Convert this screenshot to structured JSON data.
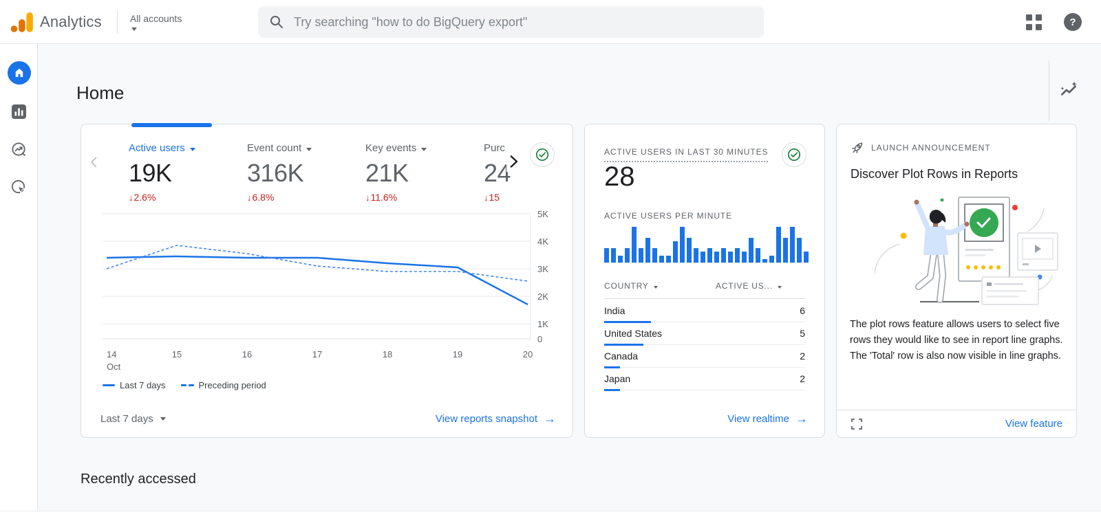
{
  "topbar": {
    "brand": "Analytics",
    "account_selector": "All accounts",
    "search_placeholder": "Try searching \"how to do BigQuery export\""
  },
  "page": {
    "title": "Home",
    "section_heading": "Recently accessed"
  },
  "overview_card": {
    "metrics": [
      {
        "label": "Active users",
        "value": "19K",
        "delta": "2.6%"
      },
      {
        "label": "Event count",
        "value": "316K",
        "delta": "6.8%"
      },
      {
        "label": "Key events",
        "value": "21K",
        "delta": "11.6%"
      },
      {
        "label": "Purc",
        "value": "24",
        "delta": "15"
      }
    ],
    "chart_data": {
      "type": "line",
      "x_days": [
        "14",
        "15",
        "16",
        "17",
        "18",
        "19",
        "20"
      ],
      "x_month": "Oct",
      "series": [
        {
          "name": "Last 7 days",
          "style": "solid",
          "values": [
            3400,
            3450,
            3400,
            3400,
            3200,
            3050,
            1700
          ]
        },
        {
          "name": "Preceding period",
          "style": "dashed",
          "values": [
            3000,
            3850,
            3550,
            3100,
            2900,
            2900,
            2550
          ]
        }
      ],
      "ylim": [
        0,
        5000
      ],
      "yticks": [
        "5K",
        "4K",
        "3K",
        "2K",
        "1K",
        "0"
      ],
      "grid": true,
      "legend_position": "bottom-left"
    },
    "legend": [
      {
        "name": "Last 7 days"
      },
      {
        "name": "Preceding period"
      }
    ],
    "date_range_label": "Last 7 days",
    "footer_link": "View reports snapshot"
  },
  "realtime_card": {
    "title": "ACTIVE USERS IN LAST 30 MINUTES",
    "value": "28",
    "bars_label": "ACTIVE USERS PER MINUTE",
    "chart_data": {
      "type": "bar",
      "ylabel": "Active users per minute",
      "values": [
        4,
        4,
        2,
        4,
        10,
        4,
        7,
        4,
        2,
        2,
        6,
        10,
        7,
        4,
        3,
        4,
        3,
        4,
        3,
        4,
        3,
        7,
        4,
        1,
        2,
        10,
        7,
        10,
        7,
        3
      ]
    },
    "table": {
      "columns": [
        "COUNTRY",
        "ACTIVE US..."
      ],
      "rows": [
        {
          "country": "India",
          "users": 6
        },
        {
          "country": "United States",
          "users": 5
        },
        {
          "country": "Canada",
          "users": 2
        },
        {
          "country": "Japan",
          "users": 2
        }
      ]
    },
    "footer_link": "View realtime"
  },
  "announcement_card": {
    "eyebrow": "LAUNCH ANNOUNCEMENT",
    "title": "Discover Plot Rows in Reports",
    "body": "The plot rows feature allows users to select five rows they would like to see in report line graphs. The 'Total' row is also now visible in line graphs.",
    "footer_link": "View feature"
  },
  "icons": {
    "search": "magnifier",
    "help": "question-mark-circle",
    "apps": "grid-squares",
    "quality": "green-check-circle",
    "announcement": "rocket",
    "insights": "sparkline-stars",
    "expand": "fullscreen-corners"
  },
  "colors": {
    "accent_blue": "#1a73e8",
    "delta_red": "#c5221f",
    "success_green": "#188038",
    "logo_orange": "#e37400",
    "logo_yellow": "#f9ab00",
    "text_primary": "#202124",
    "text_secondary": "#5f6368",
    "card_border": "#dadce0",
    "background": "#f8f9fa"
  }
}
